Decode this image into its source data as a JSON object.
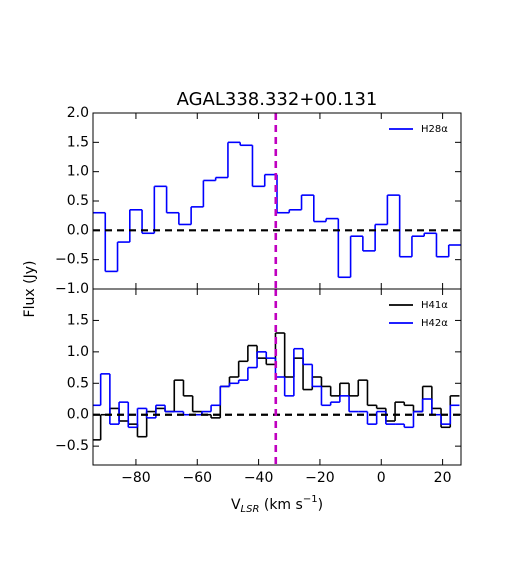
{
  "chart_data": [
    {
      "type": "step",
      "title": "AGAL338.332+00.131",
      "ylabel": "Flux (Jy)",
      "xlim": [
        -94,
        26
      ],
      "xticks": [
        -80,
        -60,
        -40,
        -20,
        0,
        20
      ],
      "ylim": [
        -1.0,
        2.0
      ],
      "yticks": [
        {
          "value": -1.0,
          "label": "−1.0"
        },
        {
          "value": -0.5,
          "label": "−0.5"
        },
        {
          "value": 0.0,
          "label": "0.0"
        },
        {
          "value": 0.5,
          "label": "0.5"
        },
        {
          "value": 1.0,
          "label": "1.0"
        },
        {
          "value": 1.5,
          "label": "1.5"
        },
        {
          "value": 2.0,
          "label": "2.0"
        }
      ],
      "bin_width": 4,
      "hline": 0,
      "vline": -34.4,
      "vline_color": "#bf00bf",
      "legend": "upper right",
      "x": [
        -92,
        -88,
        -84,
        -80,
        -76,
        -72,
        -68,
        -64,
        -60,
        -56,
        -52,
        -48,
        -44,
        -40,
        -36,
        -32,
        -28,
        -24,
        -20,
        -16,
        -12,
        -8,
        -4,
        0,
        4,
        8,
        12,
        16,
        20,
        24
      ],
      "series": [
        {
          "name": "H28α",
          "color": "#0000ff",
          "values": [
            0.3,
            -0.7,
            -0.2,
            0.35,
            -0.05,
            0.75,
            0.3,
            0.1,
            0.4,
            0.85,
            0.9,
            1.5,
            1.45,
            0.75,
            0.95,
            0.3,
            0.35,
            0.6,
            0.15,
            0.2,
            -0.8,
            -0.1,
            -0.35,
            0.1,
            0.6,
            -0.45,
            -0.1,
            -0.05,
            -0.45,
            -0.25
          ]
        }
      ]
    },
    {
      "type": "step",
      "xlabel_parts": [
        "V",
        "LSR",
        " (km s",
        "−1",
        ")"
      ],
      "xlim": [
        -94,
        26
      ],
      "xticks": [
        {
          "value": -80,
          "label": "−80"
        },
        {
          "value": -60,
          "label": "−60"
        },
        {
          "value": -40,
          "label": "−40"
        },
        {
          "value": -20,
          "label": "−20"
        },
        {
          "value": 0,
          "label": "0"
        },
        {
          "value": 20,
          "label": "20"
        }
      ],
      "ylim": [
        -0.8,
        2.0
      ],
      "yticks": [
        {
          "value": -0.5,
          "label": "−0.5"
        },
        {
          "value": 0.0,
          "label": "0.0"
        },
        {
          "value": 0.5,
          "label": "0.5"
        },
        {
          "value": 1.0,
          "label": "1.0"
        },
        {
          "value": 1.5,
          "label": "1.5"
        }
      ],
      "bin_width": 3,
      "hline": 0,
      "vline": -34.4,
      "vline_color": "#bf00bf",
      "legend": "upper right",
      "x": [
        -93,
        -90,
        -87,
        -84,
        -81,
        -78,
        -75,
        -72,
        -69,
        -66,
        -63,
        -60,
        -57,
        -54,
        -51,
        -48,
        -45,
        -42,
        -39,
        -36,
        -33,
        -30,
        -27,
        -24,
        -21,
        -18,
        -15,
        -12,
        -9,
        -6,
        -3,
        0,
        3,
        6,
        9,
        12,
        15,
        18,
        21,
        24
      ],
      "series": [
        {
          "name": "H41α",
          "color": "#000000",
          "values": [
            -0.4,
            0.0,
            0.1,
            -0.1,
            -0.15,
            -0.35,
            0.05,
            0.1,
            0.05,
            0.55,
            0.3,
            0.05,
            0.0,
            -0.05,
            0.45,
            0.6,
            0.85,
            1.1,
            0.9,
            0.8,
            1.3,
            0.6,
            0.9,
            0.4,
            0.6,
            0.45,
            0.3,
            0.5,
            0.3,
            0.55,
            0.15,
            0.1,
            -0.1,
            0.2,
            0.15,
            0.05,
            0.45,
            0.1,
            -0.2,
            0.3
          ]
        },
        {
          "name": "H42α",
          "color": "#0000ff",
          "values": [
            0.15,
            0.65,
            -0.15,
            0.2,
            -0.2,
            0.1,
            -0.05,
            0.15,
            0.05,
            0.05,
            0.0,
            0.0,
            0.05,
            0.15,
            0.45,
            0.5,
            0.55,
            0.75,
            1.0,
            0.9,
            0.6,
            0.3,
            1.05,
            0.8,
            0.45,
            0.15,
            0.2,
            0.3,
            0.05,
            0.05,
            -0.15,
            0.05,
            -0.15,
            -0.15,
            -0.2,
            0.05,
            0.25,
            0.0,
            -0.15,
            0.15
          ]
        }
      ]
    }
  ]
}
